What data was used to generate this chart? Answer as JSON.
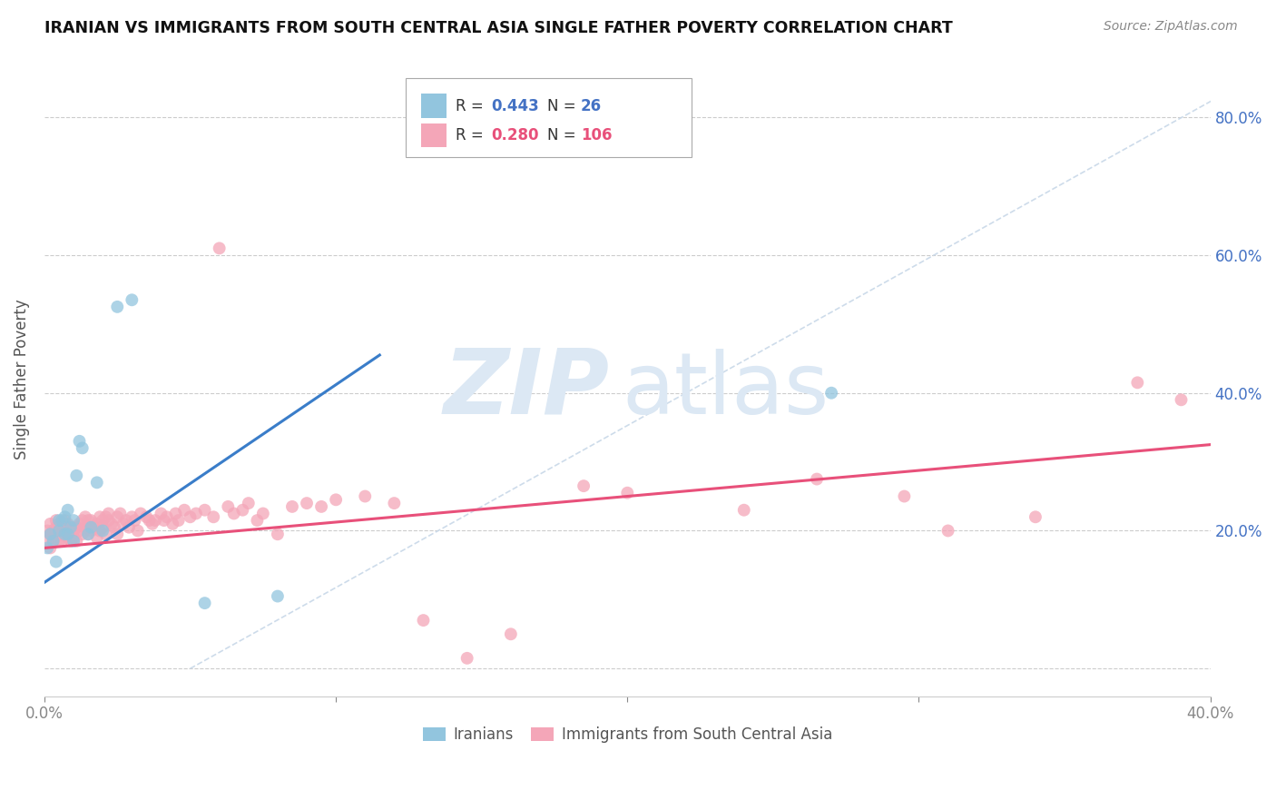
{
  "title": "IRANIAN VS IMMIGRANTS FROM SOUTH CENTRAL ASIA SINGLE FATHER POVERTY CORRELATION CHART",
  "source": "Source: ZipAtlas.com",
  "ylabel": "Single Father Poverty",
  "color_iranian": "#92c5de",
  "color_sca": "#f4a6b8",
  "color_iranian_line": "#3a7dc9",
  "color_sca_line": "#e8507a",
  "color_diagonal": "#c8d8e8",
  "background": "#ffffff",
  "xlim": [
    0.0,
    0.4
  ],
  "ylim": [
    -0.04,
    0.88
  ],
  "ytick_vals": [
    0.0,
    0.2,
    0.4,
    0.6,
    0.8
  ],
  "iranians_N": 26,
  "sca_N": 106,
  "iranians_R": 0.443,
  "sca_R": 0.28,
  "iran_line_x": [
    0.0,
    0.115
  ],
  "iran_line_y": [
    0.125,
    0.455
  ],
  "sca_line_x": [
    0.0,
    0.4
  ],
  "sca_line_y": [
    0.175,
    0.325
  ],
  "iranians_x": [
    0.001,
    0.002,
    0.003,
    0.004,
    0.005,
    0.005,
    0.006,
    0.007,
    0.007,
    0.008,
    0.008,
    0.009,
    0.01,
    0.01,
    0.011,
    0.012,
    0.013,
    0.015,
    0.016,
    0.018,
    0.02,
    0.025,
    0.03,
    0.055,
    0.08,
    0.27
  ],
  "iranians_y": [
    0.175,
    0.195,
    0.185,
    0.155,
    0.2,
    0.215,
    0.215,
    0.22,
    0.195,
    0.23,
    0.195,
    0.205,
    0.215,
    0.185,
    0.28,
    0.33,
    0.32,
    0.195,
    0.205,
    0.27,
    0.2,
    0.525,
    0.535,
    0.095,
    0.105,
    0.4
  ],
  "sca_x": [
    0.001,
    0.001,
    0.002,
    0.002,
    0.002,
    0.003,
    0.003,
    0.003,
    0.004,
    0.004,
    0.004,
    0.005,
    0.005,
    0.005,
    0.005,
    0.006,
    0.006,
    0.006,
    0.007,
    0.007,
    0.007,
    0.008,
    0.008,
    0.008,
    0.009,
    0.009,
    0.01,
    0.01,
    0.01,
    0.011,
    0.011,
    0.012,
    0.012,
    0.013,
    0.013,
    0.014,
    0.014,
    0.015,
    0.015,
    0.015,
    0.016,
    0.016,
    0.017,
    0.018,
    0.018,
    0.019,
    0.019,
    0.02,
    0.02,
    0.021,
    0.021,
    0.022,
    0.022,
    0.023,
    0.024,
    0.025,
    0.025,
    0.026,
    0.027,
    0.028,
    0.029,
    0.03,
    0.031,
    0.032,
    0.033,
    0.035,
    0.036,
    0.037,
    0.038,
    0.04,
    0.041,
    0.042,
    0.044,
    0.045,
    0.046,
    0.048,
    0.05,
    0.052,
    0.055,
    0.058,
    0.06,
    0.063,
    0.065,
    0.068,
    0.07,
    0.073,
    0.075,
    0.08,
    0.085,
    0.09,
    0.095,
    0.1,
    0.11,
    0.12,
    0.13,
    0.145,
    0.16,
    0.185,
    0.2,
    0.24,
    0.265,
    0.295,
    0.31,
    0.34,
    0.375,
    0.39
  ],
  "sca_y": [
    0.185,
    0.2,
    0.195,
    0.21,
    0.175,
    0.195,
    0.2,
    0.185,
    0.195,
    0.205,
    0.215,
    0.195,
    0.2,
    0.185,
    0.21,
    0.195,
    0.205,
    0.185,
    0.2,
    0.205,
    0.215,
    0.19,
    0.195,
    0.21,
    0.2,
    0.185,
    0.205,
    0.2,
    0.19,
    0.205,
    0.185,
    0.21,
    0.2,
    0.195,
    0.215,
    0.22,
    0.205,
    0.195,
    0.215,
    0.205,
    0.2,
    0.215,
    0.205,
    0.21,
    0.19,
    0.22,
    0.2,
    0.215,
    0.205,
    0.22,
    0.195,
    0.215,
    0.225,
    0.21,
    0.205,
    0.22,
    0.195,
    0.225,
    0.21,
    0.215,
    0.205,
    0.22,
    0.215,
    0.2,
    0.225,
    0.22,
    0.215,
    0.21,
    0.215,
    0.225,
    0.215,
    0.22,
    0.21,
    0.225,
    0.215,
    0.23,
    0.22,
    0.225,
    0.23,
    0.22,
    0.61,
    0.235,
    0.225,
    0.23,
    0.24,
    0.215,
    0.225,
    0.195,
    0.235,
    0.24,
    0.235,
    0.245,
    0.25,
    0.24,
    0.07,
    0.015,
    0.05,
    0.265,
    0.255,
    0.23,
    0.275,
    0.25,
    0.2,
    0.22,
    0.415,
    0.39
  ]
}
